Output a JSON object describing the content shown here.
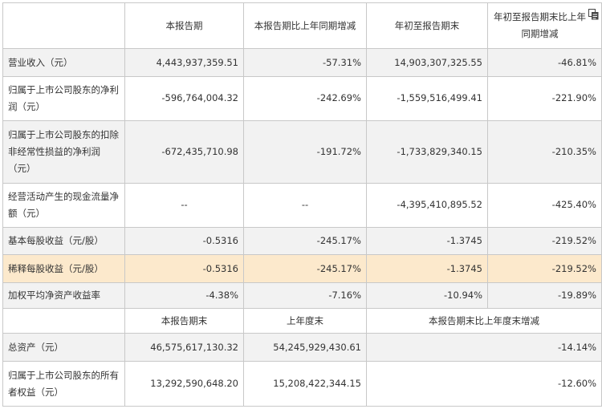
{
  "table": {
    "header": {
      "blank": "",
      "col1": "本报告期",
      "col2": "本报告期比上年同期增减",
      "col3": "年初至报告期末",
      "col4": "年初至报告期末比上年同期增减"
    },
    "rows": [
      {
        "label": "营业收入（元）",
        "v1": "4,443,937,359.51",
        "v2": "-57.31%",
        "v3": "14,903,307,325.55",
        "v4": "-46.81%"
      },
      {
        "label": "归属于上市公司股东的净利润（元）",
        "v1": "-596,764,004.32",
        "v2": "-242.69%",
        "v3": "-1,559,516,499.41",
        "v4": "-221.90%"
      },
      {
        "label": "归属于上市公司股东的扣除非经常性损益的净利润（元）",
        "v1": "-672,435,710.98",
        "v2": "-191.72%",
        "v3": "-1,733,829,340.15",
        "v4": "-210.35%"
      },
      {
        "label": "经营活动产生的现金流量净额（元）",
        "v1": "--",
        "v2": "--",
        "v3": "-4,395,410,895.52",
        "v4": "-425.40%"
      },
      {
        "label": "基本每股收益（元/股）",
        "v1": "-0.5316",
        "v2": "-245.17%",
        "v3": "-1.3745",
        "v4": "-219.52%"
      },
      {
        "label": "稀释每股收益（元/股）",
        "v1": "-0.5316",
        "v2": "-245.17%",
        "v3": "-1.3745",
        "v4": "-219.52%"
      },
      {
        "label": "加权平均净资产收益率",
        "v1": "-4.38%",
        "v2": "-7.16%",
        "v3": "-10.94%",
        "v4": "-19.89%"
      }
    ],
    "subheader": {
      "blank": "",
      "col1": "本报告期末",
      "col2": "上年度末",
      "col3": "本报告期末比上年度末增减"
    },
    "rows2": [
      {
        "label": "总资产（元）",
        "v1": "46,575,617,130.32",
        "v2": "54,245,929,430.61",
        "v3": "-14.14%"
      },
      {
        "label": "归属于上市公司股东的所有者权益（元）",
        "v1": "13,292,590,648.20",
        "v2": "15,208,422,344.15",
        "v3": "-12.60%"
      }
    ]
  },
  "icons": {
    "copy": "copy-icon"
  }
}
